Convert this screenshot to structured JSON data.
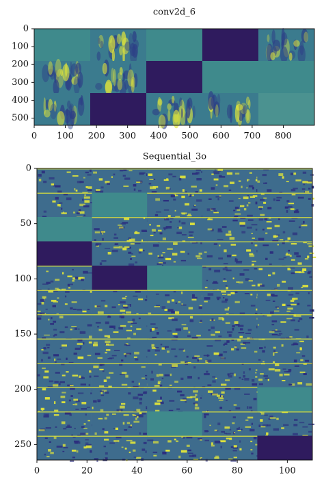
{
  "chart_data": [
    {
      "type": "heatmap",
      "title": "conv2d_6",
      "xlim": [
        0,
        900
      ],
      "ylim": [
        0,
        540
      ],
      "xticks": [
        0,
        100,
        200,
        300,
        400,
        500,
        600,
        700,
        800
      ],
      "yticks": [
        0,
        100,
        200,
        300,
        400,
        500
      ]
    },
    {
      "type": "heatmap",
      "title": "Sequential_3o",
      "xlim": [
        0,
        110
      ],
      "ylim": [
        0,
        264
      ],
      "xticks": [
        0,
        20,
        40,
        60,
        80,
        100
      ],
      "yticks": [
        0,
        50,
        100,
        150,
        200,
        250
      ]
    }
  ]
}
